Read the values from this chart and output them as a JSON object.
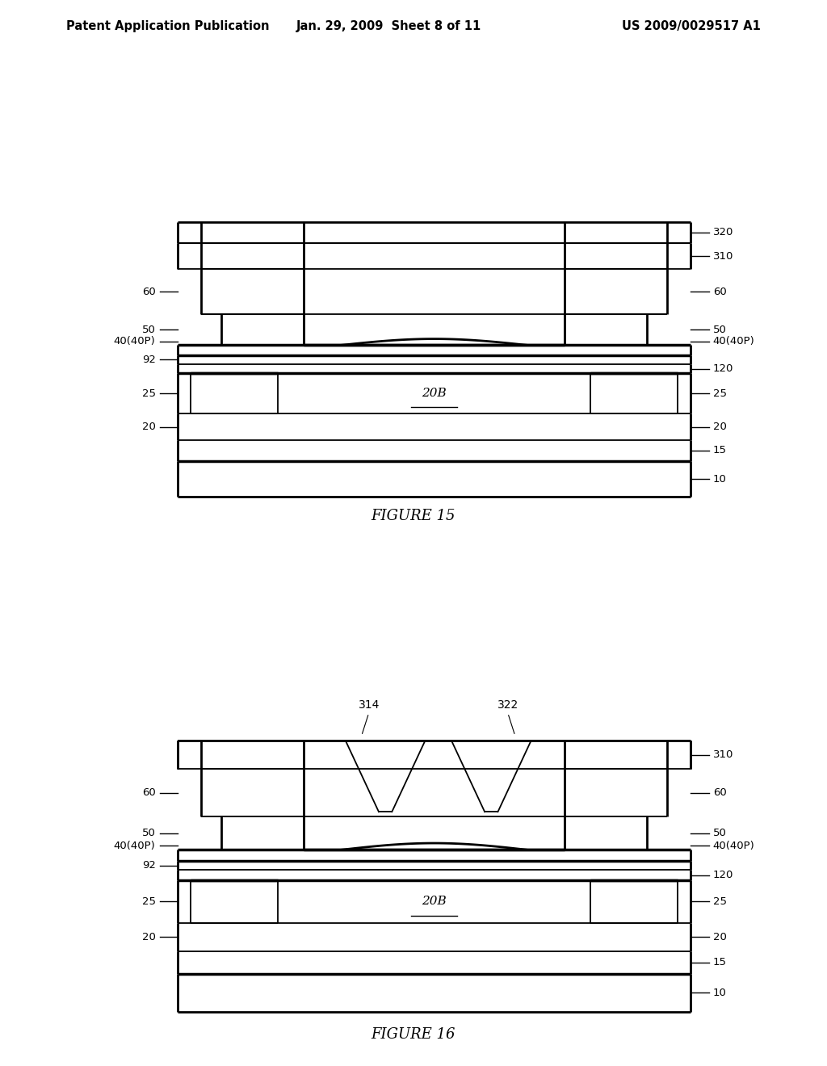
{
  "bg_color": "#ffffff",
  "header_left": "Patent Application Publication",
  "header_mid": "Jan. 29, 2009  Sheet 8 of 11",
  "header_right": "US 2009/0029517 A1",
  "fig15_caption": "FIGURE 15",
  "fig16_caption": "FIGURE 16",
  "lw_thin": 1.3,
  "lw_thick": 2.5,
  "lw_border": 2.0
}
